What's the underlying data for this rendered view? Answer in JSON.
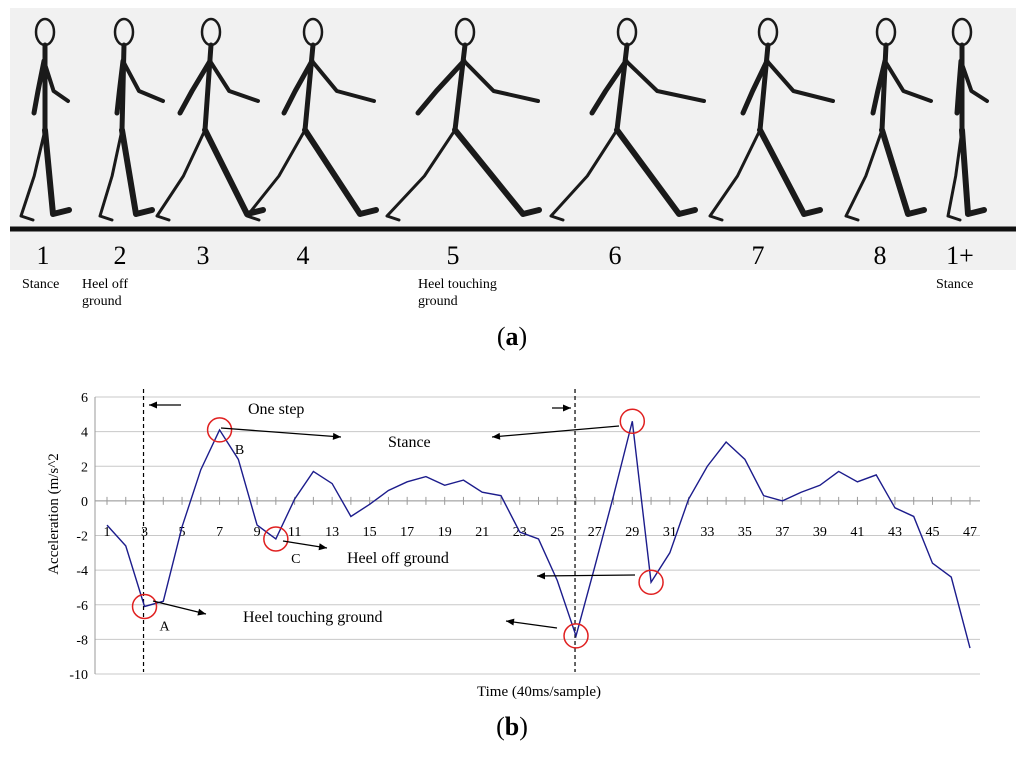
{
  "panel_a": {
    "caption_letter": "a",
    "frames": [
      {
        "number": "1",
        "label": [
          "Stance"
        ]
      },
      {
        "number": "2",
        "label": [
          "Heel off",
          "ground"
        ]
      },
      {
        "number": "3",
        "label": []
      },
      {
        "number": "4",
        "label": []
      },
      {
        "number": "5",
        "label": [
          "Heel touching",
          "ground"
        ]
      },
      {
        "number": "6",
        "label": []
      },
      {
        "number": "7",
        "label": []
      },
      {
        "number": "8",
        "label": []
      },
      {
        "number": "1+",
        "label": [
          "Stance"
        ]
      }
    ]
  },
  "panel_b": {
    "caption_letter": "b"
  },
  "chart_data": {
    "type": "line",
    "xlabel": "Time (40ms/sample)",
    "ylabel": "Acceleration (m/s^2",
    "ylim": [
      -10,
      6
    ],
    "yticks": [
      6,
      4,
      2,
      0,
      -2,
      -4,
      -6,
      -8,
      -10
    ],
    "xticks": [
      1,
      3,
      5,
      7,
      9,
      11,
      13,
      15,
      17,
      19,
      21,
      23,
      25,
      27,
      29,
      31,
      33,
      35,
      37,
      39,
      41,
      43,
      45,
      47
    ],
    "xlim": [
      1,
      47
    ],
    "grid": "horizontal",
    "line_color": "#1c1c8c",
    "x": [
      1,
      2,
      3,
      4,
      5,
      6,
      7,
      8,
      9,
      10,
      11,
      12,
      13,
      14,
      15,
      16,
      17,
      18,
      19,
      20,
      21,
      22,
      23,
      24,
      25,
      26,
      27,
      28,
      29,
      30,
      31,
      32,
      33,
      34,
      35,
      36,
      37,
      38,
      39,
      40,
      41,
      42,
      43,
      44,
      45,
      46,
      47
    ],
    "y": [
      -1.4,
      -2.6,
      -6.1,
      -5.8,
      -1.5,
      1.8,
      4.1,
      2.4,
      -1.4,
      -2.2,
      0.1,
      1.7,
      1.0,
      -0.9,
      -0.2,
      0.6,
      1.1,
      1.4,
      0.9,
      1.2,
      0.5,
      0.3,
      -1.8,
      -2.2,
      -4.6,
      -7.8,
      -3.8,
      0.3,
      4.6,
      -4.7,
      -3.0,
      0.1,
      2.0,
      3.4,
      2.4,
      0.3,
      0.0,
      0.5,
      0.9,
      1.7,
      1.1,
      1.5,
      -0.4,
      -0.9,
      -3.6,
      -4.4,
      -8.5
    ],
    "vertical_markers": [
      3,
      26
    ],
    "circled_points": [
      {
        "x": 3,
        "y": -6.1,
        "label": "A"
      },
      {
        "x": 7,
        "y": 4.1,
        "label": "B"
      },
      {
        "x": 10,
        "y": -2.2,
        "label": "C"
      },
      {
        "x": 26,
        "y": -7.8,
        "label": ""
      },
      {
        "x": 29,
        "y": 4.6,
        "label": ""
      },
      {
        "x": 30,
        "y": -4.7,
        "label": ""
      }
    ],
    "annotations": {
      "one_step": "One step",
      "stance": "Stance",
      "heel_off": "Heel off ground",
      "heel_touch": "Heel touching ground"
    },
    "marker_color": "#e02020"
  }
}
